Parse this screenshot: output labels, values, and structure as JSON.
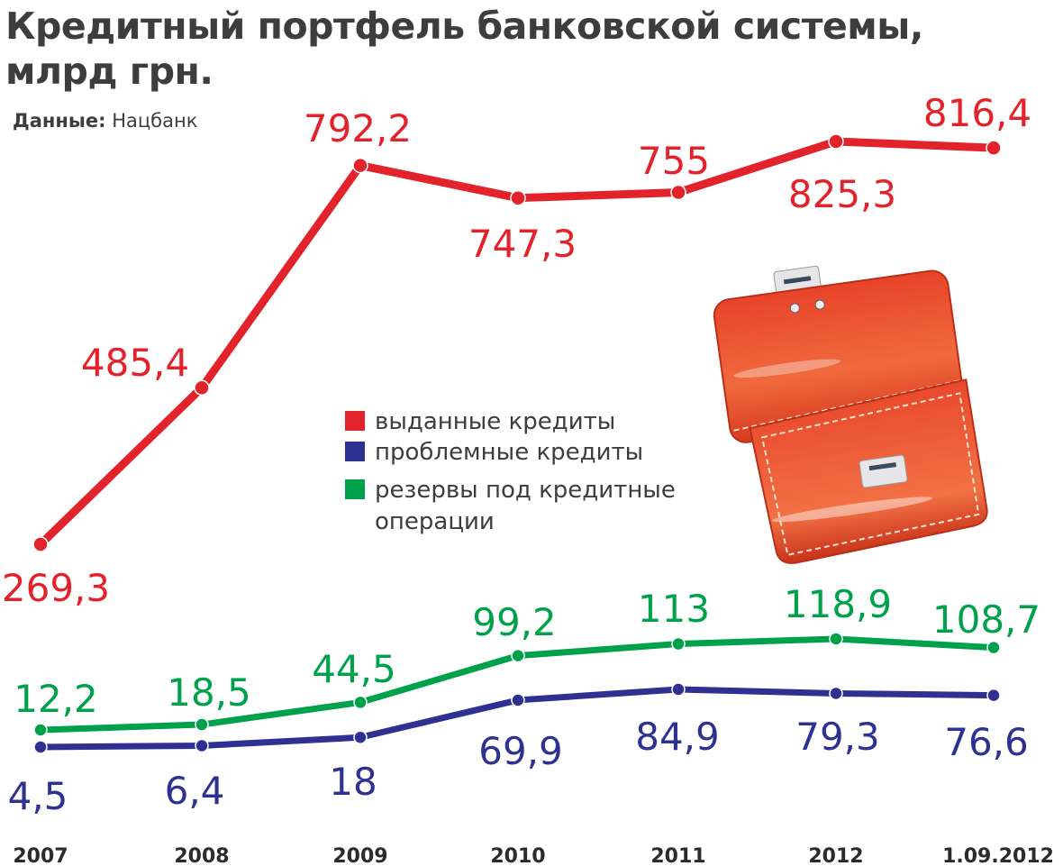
{
  "title_line1": "Кредитный портфель банковской системы,",
  "title_line2": "млрд грн.",
  "source_label": "Данные:",
  "source_value": "Нацбанк",
  "chart_data": {
    "type": "line",
    "title": "Кредитный портфель банковской системы, млрд грн.",
    "categories": [
      "2007",
      "2008",
      "2009",
      "2010",
      "2011",
      "2012",
      "1.09.2012"
    ],
    "series": [
      {
        "name": "выданные кредиты",
        "color": "#e3232b",
        "values": [
          269.3,
          485.4,
          792.2,
          747.3,
          755,
          825.3,
          816.4
        ],
        "labels": [
          "269,3",
          "485,4",
          "792,2",
          "747,3",
          "755",
          "825,3",
          "816,4"
        ]
      },
      {
        "name": "проблемные кредиты",
        "color": "#2e3192",
        "values": [
          4.5,
          6.4,
          18,
          69.9,
          84.9,
          79.3,
          76.6
        ],
        "labels": [
          "4,5",
          "6,4",
          "18",
          "69,9",
          "84,9",
          "79,3",
          "76,6"
        ]
      },
      {
        "name": "резервы под кредитные операции",
        "color": "#00a14b",
        "values": [
          12.2,
          18.5,
          44.5,
          99.2,
          113,
          118.9,
          108.7
        ],
        "labels": [
          "12,2",
          "18,5",
          "44,5",
          "99,2",
          "113",
          "118,9",
          "108,7"
        ]
      }
    ],
    "legend": {
      "placement": "center",
      "items": [
        {
          "text": "выданные кредиты",
          "color": "#e3232b"
        },
        {
          "text": "проблемные кредиты",
          "color": "#2e3192"
        },
        {
          "text_line1": "резервы под кредитные",
          "text_line2": "операции",
          "color": "#00a14b"
        }
      ]
    },
    "grid": false,
    "y_axis_shown": false
  },
  "illustration": "briefcase"
}
